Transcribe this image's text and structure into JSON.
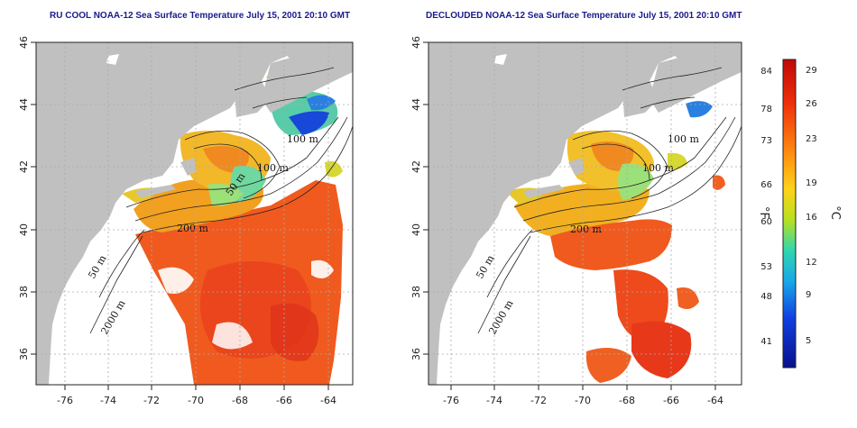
{
  "panels": [
    {
      "id": "left",
      "title": "RU COOL NOAA-12 Sea Surface Temperature July 15, 2001 20:10 GMT",
      "contour_labels": [
        "100 m",
        "100 m",
        "50 m",
        "200 m",
        "50 m",
        "2000 m"
      ]
    },
    {
      "id": "right",
      "title": "DECLOUDED NOAA-12 Sea Surface Temperature July 15, 2001 20:10 GMT",
      "contour_labels": [
        "100 m",
        "100 m",
        "200 m",
        "50 m",
        "2000 m"
      ]
    }
  ],
  "axes": {
    "x_ticks": [
      "-76",
      "-74",
      "-72",
      "-70",
      "-68",
      "-66",
      "-64"
    ],
    "y_ticks": [
      "36",
      "38",
      "40",
      "42",
      "44",
      "46"
    ]
  },
  "colorbar": {
    "fahrenheit_unit": "°F",
    "celsius_unit": "°C",
    "fahrenheit_ticks": [
      "84",
      "78",
      "73",
      "66",
      "60",
      "53",
      "48",
      "41"
    ],
    "celsius_ticks": [
      "29",
      "26",
      "23",
      "19",
      "16",
      "12",
      "9",
      "5"
    ],
    "colors": [
      "#d10a0a",
      "#f23a0a",
      "#ff8a10",
      "#ffd21a",
      "#c8e020",
      "#3ed6a0",
      "#20b0e8",
      "#1040e0",
      "#08108c"
    ]
  },
  "colors": {
    "land": "#c0c0c0",
    "ocean_no_data": "#ffffff",
    "contour": "#222222",
    "grid": "#aaaaaa",
    "title": "#1a1a8c"
  }
}
